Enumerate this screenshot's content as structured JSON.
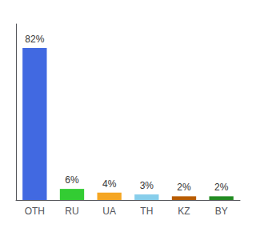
{
  "chart_data": {
    "type": "bar",
    "categories": [
      "OTH",
      "RU",
      "UA",
      "TH",
      "KZ",
      "BY"
    ],
    "values": [
      82,
      6,
      4,
      3,
      2,
      2
    ],
    "value_labels": [
      "82%",
      "6%",
      "4%",
      "3%",
      "2%",
      "2%"
    ],
    "colors": [
      "#4169e1",
      "#33cc33",
      "#f5a623",
      "#87ceeb",
      "#b85c00",
      "#228b22"
    ],
    "data_labels": true,
    "ylim": [
      0,
      95
    ],
    "tick_labels": "x",
    "grid": false
  }
}
